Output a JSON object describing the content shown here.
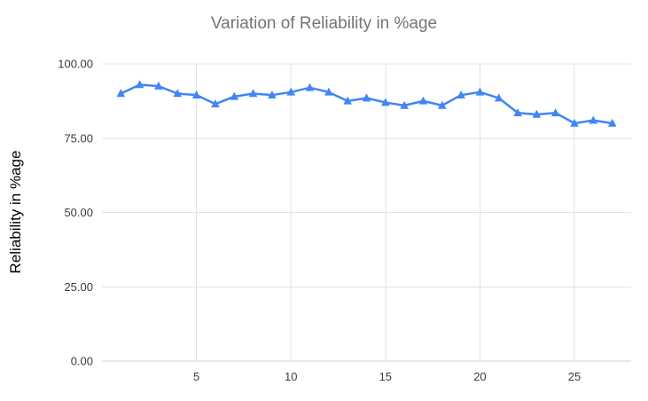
{
  "chart_data": {
    "type": "line",
    "title": "Variation of Reliability in %age",
    "xlabel": "",
    "ylabel": "Reliability in %age",
    "series_name": "Reliability",
    "x": [
      1,
      2,
      3,
      4,
      5,
      6,
      7,
      8,
      9,
      10,
      11,
      12,
      13,
      14,
      15,
      16,
      17,
      18,
      19,
      20,
      21,
      22,
      23,
      24,
      25,
      26,
      27
    ],
    "values": [
      90,
      93,
      92.5,
      90,
      89.5,
      86.5,
      89,
      90,
      89.5,
      90.5,
      92,
      90.5,
      87.5,
      88.5,
      87,
      86,
      87.5,
      86,
      89.5,
      90.5,
      88.5,
      83.5,
      83,
      83.5,
      80,
      81,
      80
    ],
    "xlim": [
      0,
      28
    ],
    "ylim": [
      0,
      100
    ],
    "xticks": [
      5,
      10,
      15,
      20,
      25
    ],
    "yticks": [
      {
        "value": 0,
        "label": "0.00"
      },
      {
        "value": 25,
        "label": "25.00"
      },
      {
        "value": 50,
        "label": "50.00"
      },
      {
        "value": 75,
        "label": "75.00"
      },
      {
        "value": 100,
        "label": "100.00"
      }
    ],
    "grid": true,
    "legend_position": "none",
    "marker": "triangle",
    "colors": {
      "line": "#4285f4",
      "grid": "#e3e3e3",
      "axis_line": "#cccccc",
      "tick_label": "#3c3c3c",
      "title": "#757575",
      "axis_title": "#000000",
      "background": "#ffffff"
    }
  }
}
